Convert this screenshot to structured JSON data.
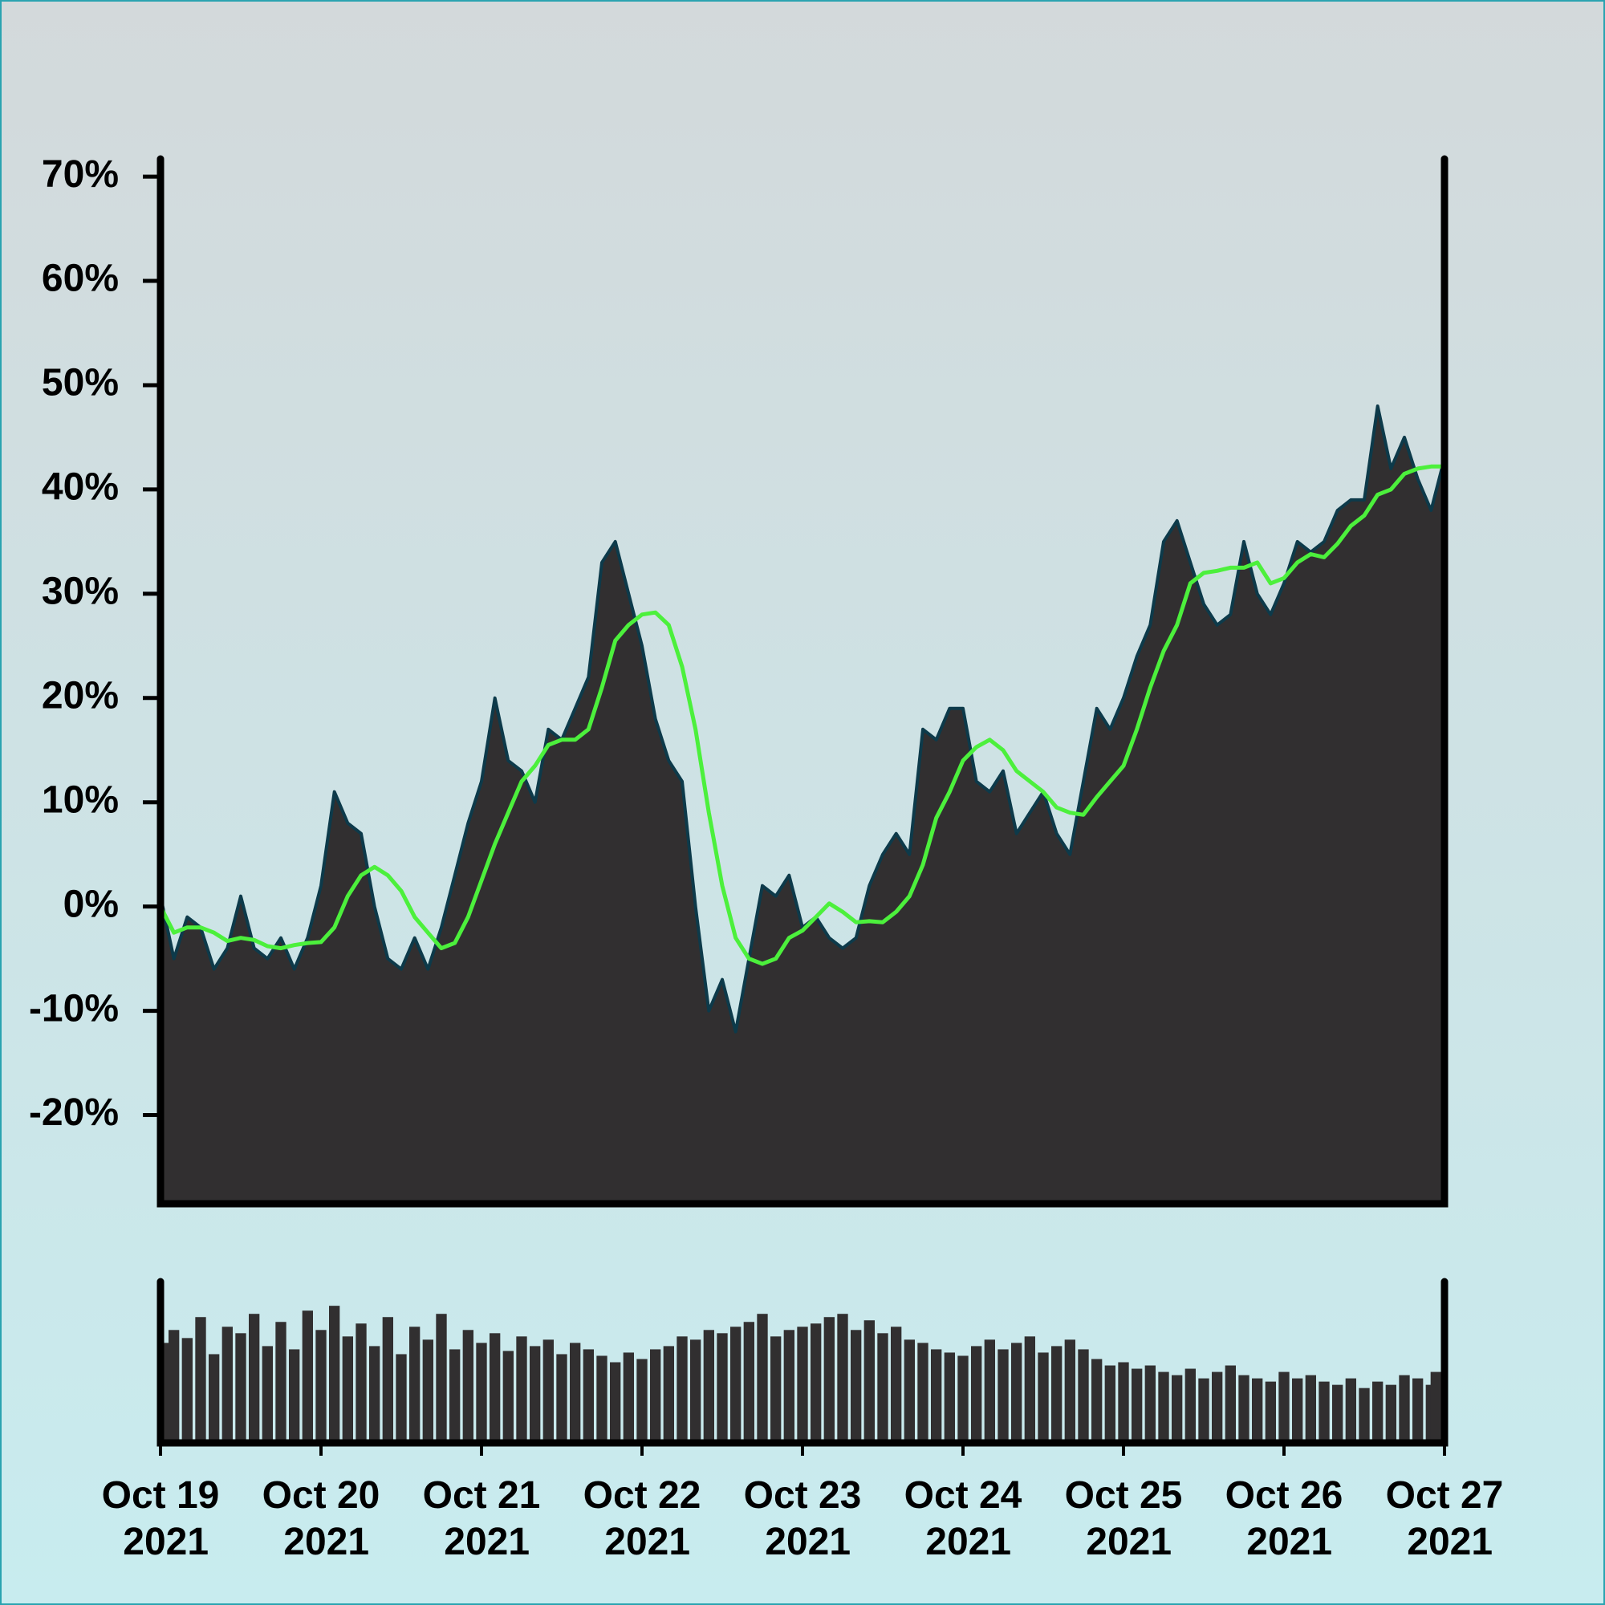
{
  "chart_data": [
    {
      "type": "area",
      "categories": [
        "Oct 19 2021",
        null,
        null,
        null,
        null,
        null,
        null,
        null,
        null,
        null,
        null,
        null,
        "Oct 20 2021",
        null,
        null,
        null,
        null,
        null,
        null,
        null,
        null,
        null,
        null,
        null,
        "Oct 21 2021",
        null,
        null,
        null,
        null,
        null,
        null,
        null,
        null,
        null,
        null,
        null,
        "Oct 22 2021",
        null,
        null,
        null,
        null,
        null,
        null,
        null,
        null,
        null,
        null,
        null,
        "Oct 23 2021",
        null,
        null,
        null,
        null,
        null,
        null,
        null,
        null,
        null,
        null,
        null,
        "Oct 24 2021",
        null,
        null,
        null,
        null,
        null,
        null,
        null,
        null,
        null,
        null,
        null,
        "Oct 25 2021",
        null,
        null,
        null,
        null,
        null,
        null,
        null,
        null,
        null,
        null,
        null,
        "Oct 26 2021",
        null,
        null,
        null,
        null,
        null,
        null,
        null,
        null,
        null,
        null,
        null,
        "Oct 27 2021"
      ],
      "series": [
        {
          "style": "area",
          "color": "#312f30",
          "edge": "#0d3a4a",
          "values": [
            1,
            -5,
            -1,
            -2,
            -6,
            -4,
            1,
            -4,
            -5,
            -3,
            -6,
            -3,
            2,
            11,
            8,
            7,
            0,
            -5,
            -6,
            -3,
            -6,
            -2,
            3,
            8,
            12,
            20,
            14,
            13,
            10,
            17,
            16,
            19,
            22,
            33,
            35,
            30,
            25,
            18,
            14,
            12,
            0,
            -10,
            -7,
            -12,
            -5,
            2,
            1,
            3,
            -2,
            -1,
            -3,
            -4,
            -3,
            2,
            5,
            7,
            5,
            17,
            16,
            19,
            19,
            12,
            11,
            13,
            7,
            9,
            11,
            7,
            5,
            12,
            19,
            17,
            20,
            24,
            27,
            35,
            37,
            33,
            29,
            27,
            28,
            35,
            30,
            28,
            31,
            35,
            34,
            35,
            38,
            39,
            39,
            48,
            42,
            45,
            41,
            38,
            43
          ]
        },
        {
          "style": "line",
          "color": "#4cf03c",
          "values": [
            0,
            -2.5,
            -2,
            -2,
            -2.5,
            -3.3,
            -3,
            -3.2,
            -3.8,
            -4,
            -3.7,
            -3.5,
            -3.4,
            -2,
            1,
            3,
            3.8,
            3,
            1.5,
            -1,
            -2.5,
            -4,
            -3.5,
            -1,
            2.5,
            6,
            9,
            12,
            13.5,
            15.5,
            16,
            16,
            17,
            21,
            25.5,
            27,
            28,
            28.2,
            27,
            23,
            17,
            9,
            2,
            -3,
            -5,
            -5.5,
            -5,
            -3,
            -2.3,
            -1,
            0.3,
            -0.5,
            -1.5,
            -1.4,
            -1.5,
            -0.5,
            1,
            4,
            8.5,
            11,
            14,
            15.3,
            16,
            15,
            13,
            12,
            11,
            9.5,
            9,
            8.8,
            10.5,
            12,
            13.5,
            17,
            21,
            24.5,
            27,
            31,
            32,
            32.2,
            32.5,
            32.5,
            33,
            31,
            31.5,
            33,
            33.8,
            33.5,
            34.8,
            36.5,
            37.5,
            39.5,
            40,
            41.5,
            42,
            42.2,
            42.2
          ]
        }
      ],
      "ylim": [
        -28.5,
        71.7
      ],
      "yticks": [
        {
          "value": -20,
          "label": "-20%"
        },
        {
          "value": -10,
          "label": "-10%"
        },
        {
          "value": 0,
          "label": "0%"
        },
        {
          "value": 10,
          "label": "10%"
        },
        {
          "value": 20,
          "label": "20%"
        },
        {
          "value": 30,
          "label": "30%"
        },
        {
          "value": 40,
          "label": "40%"
        },
        {
          "value": 50,
          "label": "50%"
        },
        {
          "value": 60,
          "label": "60%"
        },
        {
          "value": 70,
          "label": "70%"
        }
      ]
    },
    {
      "type": "bar",
      "color": "#312f30",
      "values": [
        62,
        70,
        65,
        78,
        55,
        72,
        68,
        80,
        60,
        75,
        58,
        82,
        70,
        85,
        66,
        74,
        60,
        78,
        55,
        72,
        64,
        80,
        58,
        70,
        62,
        68,
        57,
        66,
        60,
        64,
        55,
        62,
        58,
        54,
        50,
        56,
        52,
        58,
        60,
        66,
        64,
        70,
        68,
        72,
        75,
        80,
        66,
        70,
        72,
        74,
        78,
        80,
        70,
        76,
        68,
        72,
        64,
        62,
        58,
        56,
        54,
        60,
        64,
        58,
        62,
        66,
        56,
        60,
        64,
        58,
        52,
        48,
        50,
        46,
        48,
        44,
        42,
        46,
        40,
        44,
        48,
        42,
        40,
        38,
        44,
        40,
        42,
        38,
        36,
        40,
        34,
        38,
        36,
        42,
        40,
        36,
        44
      ],
      "ylim": [
        0,
        100
      ]
    }
  ]
}
